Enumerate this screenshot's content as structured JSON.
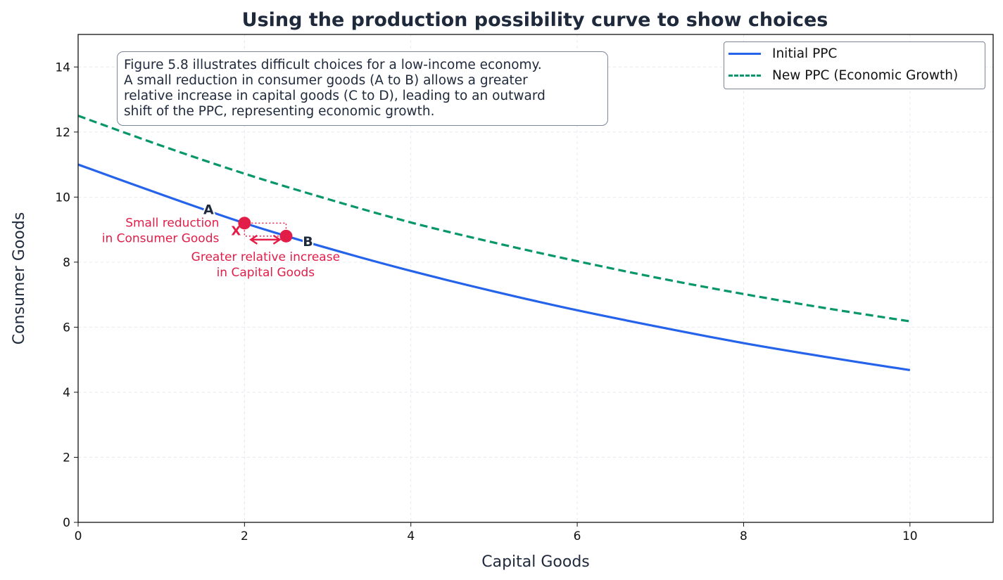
{
  "chart_data": {
    "type": "line",
    "title": "Using the production possibility curve to show choices",
    "xlabel": "Capital Goods",
    "ylabel": "Consumer Goods",
    "xlim": [
      0,
      11
    ],
    "ylim": [
      0,
      15
    ],
    "xticks": [
      0,
      2,
      4,
      6,
      8,
      10
    ],
    "yticks": [
      0,
      2,
      4,
      6,
      8,
      10,
      12,
      14
    ],
    "grid": true,
    "legend_position": "top-right",
    "x": [
      0,
      1,
      2,
      3,
      4,
      5,
      6,
      7,
      8,
      9,
      10
    ],
    "series": [
      {
        "name": "Initial PPC",
        "color": "#2563eb",
        "style": "solid",
        "values": [
          11.0,
          10.08,
          9.2,
          8.43,
          7.73,
          7.1,
          6.52,
          6.0,
          5.51,
          5.08,
          4.68
        ]
      },
      {
        "name": "New PPC (Economic Growth)",
        "color": "#059669",
        "style": "dashed",
        "values": [
          12.5,
          11.58,
          10.72,
          9.94,
          9.22,
          8.6,
          8.03,
          7.5,
          7.02,
          6.58,
          6.18
        ]
      }
    ],
    "points": [
      {
        "label": "A",
        "x": 2.0,
        "y": 9.2
      },
      {
        "label": "B",
        "x": 2.5,
        "y": 8.8
      }
    ],
    "annotations": {
      "marker": "X",
      "reduction": [
        "Small reduction",
        "in Consumer Goods"
      ],
      "increase": [
        "Greater relative increase",
        "in Capital Goods"
      ],
      "note": [
        "Figure 5.8 illustrates difficult choices for a low-income economy.",
        "A small reduction in consumer goods (A to B) allows a greater",
        "relative increase in capital goods (C to D), leading to an outward",
        "shift of the PPC, representing economic growth."
      ]
    },
    "accent_color": "#e11d48"
  }
}
